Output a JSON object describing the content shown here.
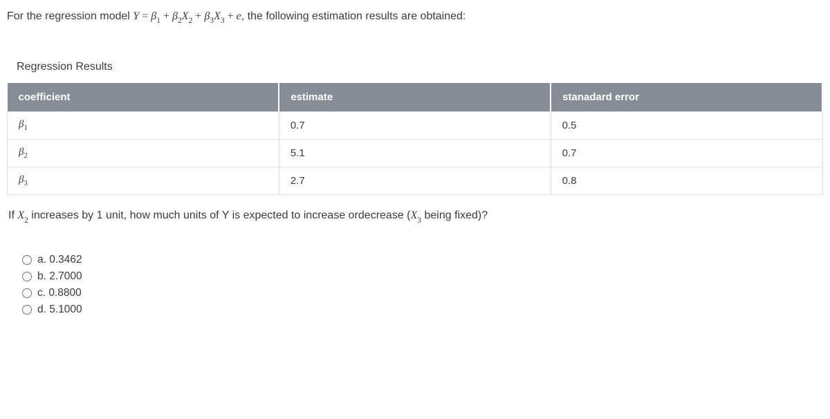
{
  "intro": {
    "prefix": "For the regression model ",
    "eq": "Y = β1 + β2X2 + β3X3 + e",
    "suffix": ", the following estimation results are obtained:"
  },
  "table": {
    "caption": "Regression Results",
    "columns": [
      "coefficient",
      "estimate",
      "stanadard error"
    ],
    "rows": [
      {
        "coef_base": "β",
        "coef_sub": "1",
        "estimate": "0.7",
        "stderr": "0.5"
      },
      {
        "coef_base": "β",
        "coef_sub": "2",
        "estimate": "5.1",
        "stderr": "0.7"
      },
      {
        "coef_base": "β",
        "coef_sub": "3",
        "estimate": "2.7",
        "stderr": "0.8"
      }
    ],
    "header_bg": "#888c94",
    "header_fg": "#ffffff",
    "cell_border": "#dcdfe3"
  },
  "followup": {
    "prefix": "If ",
    "x2_base": "X",
    "x2_sub": "2",
    "mid": " increases by 1 unit, how much units of Y is expected to increase ordecrease (",
    "x3_base": "X",
    "x3_sub": "3",
    "after_x3": "  being fixed)?"
  },
  "options": {
    "a": "a. 0.3462",
    "b": "b. 2.7000",
    "c": "c. 0.8800",
    "d": "d. 5.1000"
  }
}
